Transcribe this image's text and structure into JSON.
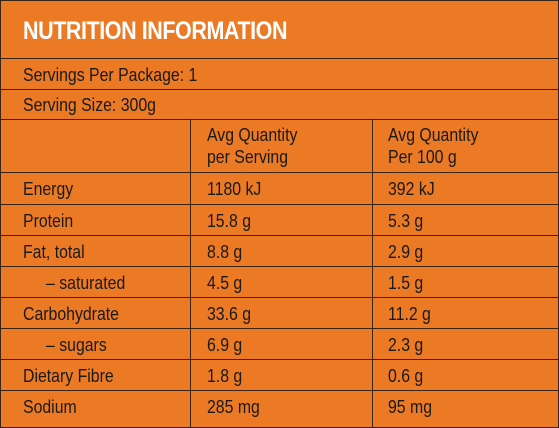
{
  "title": "NUTRITION INFORMATION",
  "servings_per_package": "Servings Per Package: 1",
  "serving_size": "Serving Size: 300g",
  "columns": {
    "per_serving_line1": "Avg Quantity",
    "per_serving_line2": "per Serving",
    "per_100g_line1": "Avg Quantity",
    "per_100g_line2": "Per 100 g"
  },
  "rows": [
    {
      "label": "Energy",
      "per_serving": "1180 kJ",
      "per_100g": "392 kJ"
    },
    {
      "label": "Protein",
      "per_serving": "15.8 g",
      "per_100g": "5.3 g"
    },
    {
      "label": "Fat, total",
      "per_serving": "8.8 g",
      "per_100g": "2.9 g"
    },
    {
      "label": "– saturated",
      "per_serving": "4.5 g",
      "per_100g": "1.5 g"
    },
    {
      "label": "Carbohydrate",
      "per_serving": "33.6 g",
      "per_100g": "11.2 g"
    },
    {
      "label": "– sugars",
      "per_serving": "6.9 g",
      "per_100g": "2.3 g"
    },
    {
      "label": "Dietary Fibre",
      "per_serving": "1.8 g",
      "per_100g": "0.6 g"
    },
    {
      "label": "Sodium",
      "per_serving": "285 mg",
      "per_100g": "95 mg"
    }
  ],
  "colors": {
    "background": "#ec7a25",
    "title_text": "#ffffff",
    "lines": "#3a2414"
  }
}
